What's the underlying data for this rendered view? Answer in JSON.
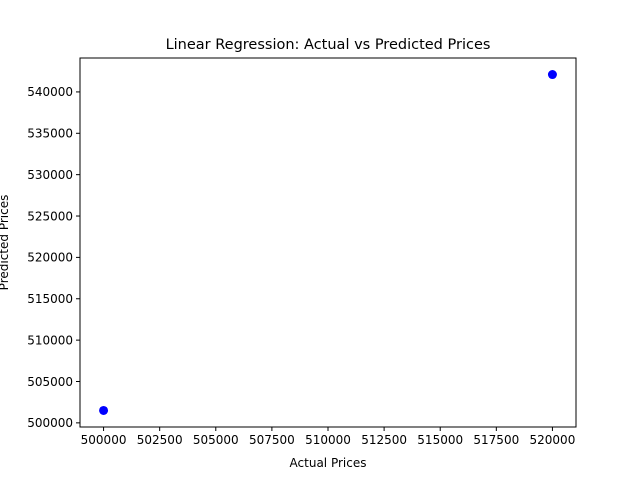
{
  "chart_data": {
    "type": "scatter",
    "title": "Linear Regression: Actual vs Predicted Prices",
    "xlabel": "Actual Prices",
    "ylabel": "Predicted Prices",
    "xlim": [
      498950,
      521050
    ],
    "ylim": [
      499500,
      544100
    ],
    "xticks": [
      500000,
      502500,
      505000,
      507500,
      510000,
      512500,
      515000,
      517500,
      520000
    ],
    "yticks": [
      500000,
      505000,
      510000,
      515000,
      520000,
      525000,
      530000,
      535000,
      540000
    ],
    "grid": false,
    "series": [
      {
        "color": "#0000ff",
        "points": [
          {
            "x": 500000,
            "y": 501500
          },
          {
            "x": 520000,
            "y": 542100
          }
        ]
      }
    ]
  }
}
